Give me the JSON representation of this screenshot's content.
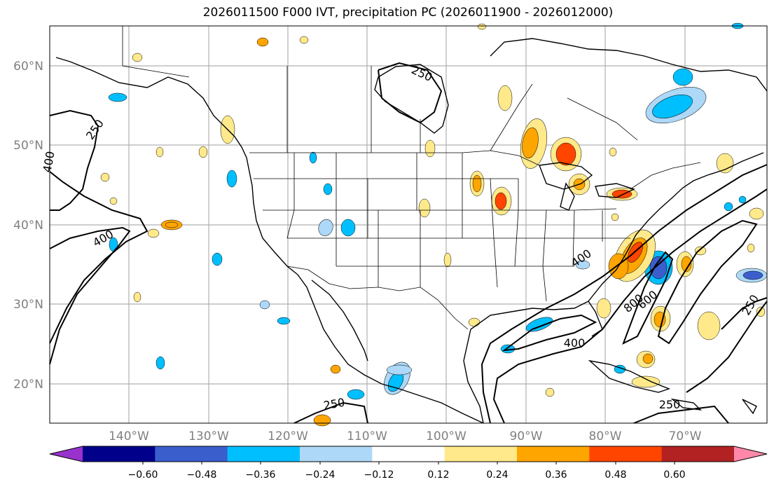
{
  "title": "2026011500 F000 IVT, precipitation PC (2026011900 - 2026012000)",
  "latitude_labels": [
    "60°N",
    "50°N",
    "40°N",
    "30°N",
    "20°N"
  ],
  "longitude_labels": [
    "140°W",
    "130°W",
    "120°W",
    "110°W",
    "100°W",
    "90°W",
    "80°W",
    "70°W"
  ],
  "ivt_contour_labels": [
    "250",
    "400",
    "400",
    "250",
    "400",
    "600",
    "800",
    "250",
    "250",
    "250",
    "400"
  ],
  "colorbar": {
    "tick_labels": [
      "−0.60",
      "−0.48",
      "−0.36",
      "−0.24",
      "−0.12",
      "0.12",
      "0.24",
      "0.36",
      "0.48",
      "0.60"
    ],
    "colors": [
      "#9932cc",
      "#00008b",
      "#3a5fcd",
      "#00bfff",
      "#add8f7",
      "#ffffff",
      "#ffe98a",
      "#ffa500",
      "#ff4500",
      "#b22222",
      "#ff88aa"
    ]
  },
  "colors": {
    "contour": "#000000",
    "grid": "#b0b0b0",
    "axis_label": "#808080"
  }
}
